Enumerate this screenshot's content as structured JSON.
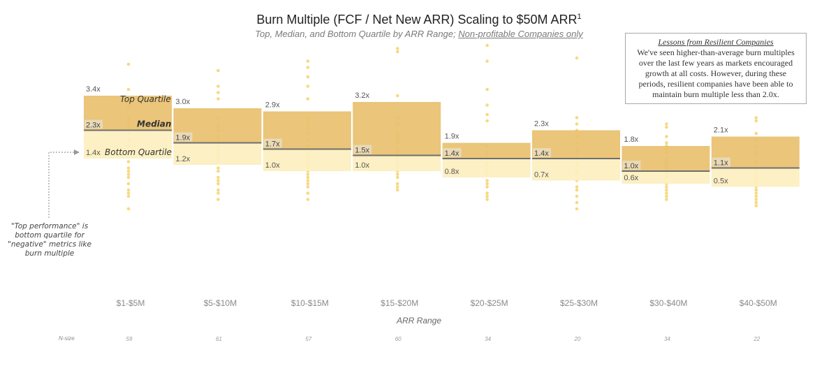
{
  "title": "Burn Multiple (FCF / Net New ARR) Scaling to $50M ARR",
  "title_sup": "1",
  "subtitle_main": "Top, Median, and Bottom Quartile by ARR Range;",
  "subtitle_underlined": "Non-profitable Companies only",
  "lessons": {
    "heading": "Lessons from Resilient Companies",
    "body": "We've seen higher-than-average burn multiples over the last few years as markets encouraged growth at all costs. However, during these periods, resilient companies have been able to maintain burn multiple less than 2.0x."
  },
  "callout": "\"Top performance\" is bottom quartile for \"negative\" metrics like burn multiple",
  "legend_labels": {
    "top": "Top Quartile",
    "median": "Median",
    "bottom": "Bottom Quartile"
  },
  "xaxis_title": "ARR Range",
  "nsize_label": "N-size",
  "colors": {
    "upper_box": "#e8c170",
    "lower_box": "#fcefc0",
    "median_line": "#6f6f6f",
    "dots": "#f7d77a"
  },
  "chart_data": {
    "type": "box",
    "categories": [
      "$1-$5M",
      "$5-$10M",
      "$10-$15M",
      "$15-$20M",
      "$20-$25M",
      "$25-$30M",
      "$30-$40M",
      "$40-$50M"
    ],
    "top_quartile": [
      3.4,
      3.0,
      2.9,
      3.2,
      1.9,
      2.3,
      1.8,
      2.1
    ],
    "median": [
      2.3,
      1.9,
      1.7,
      1.5,
      1.4,
      1.4,
      1.0,
      1.1
    ],
    "bottom_quartile": [
      1.4,
      1.2,
      1.0,
      1.0,
      0.8,
      0.7,
      0.6,
      0.5
    ],
    "top_labels": [
      "3.4x",
      "3.0x",
      "2.9x",
      "3.2x",
      "1.9x",
      "2.3x",
      "1.8x",
      "2.1x"
    ],
    "median_labels": [
      "2.3x",
      "1.9x",
      "1.7x",
      "1.5x",
      "1.4x",
      "1.4x",
      "1.0x",
      "1.1x"
    ],
    "bottom_labels": [
      "1.4x",
      "1.2x",
      "1.0x",
      "1.0x",
      "0.8x",
      "0.7x",
      "0.6x",
      "0.5x"
    ],
    "n_size": [
      59,
      61,
      57,
      60,
      34,
      20,
      34,
      22
    ],
    "points": [
      [
        4.4,
        3.6,
        3.1,
        3.0,
        2.7,
        2.6,
        2.5,
        2.4,
        2.2,
        2.0,
        1.8,
        1.6,
        1.5,
        1.3,
        1.1,
        1.0,
        0.9,
        0.8,
        0.6,
        0.4,
        0.3,
        0.2,
        -0.2
      ],
      [
        4.2,
        3.7,
        3.5,
        3.3,
        2.7,
        2.5,
        2.4,
        2.3,
        2.1,
        2.0,
        1.8,
        1.7,
        1.6,
        1.5,
        1.4,
        1.3,
        1.1,
        1.0,
        0.8,
        0.7,
        0.6,
        0.4,
        0.3,
        0.1
      ],
      [
        4.5,
        4.3,
        4.0,
        3.7,
        3.3,
        2.7,
        2.6,
        2.5,
        2.4,
        2.2,
        2.0,
        1.8,
        1.6,
        1.5,
        1.4,
        1.3,
        1.2,
        1.1,
        1.0,
        0.9,
        0.8,
        0.7,
        0.6,
        0.5,
        0.3,
        0.1
      ],
      [
        4.9,
        4.8,
        3.4,
        2.7,
        2.5,
        2.2,
        2.1,
        2.0,
        1.9,
        1.7,
        1.6,
        1.5,
        1.4,
        1.3,
        1.2,
        1.1,
        1.0,
        0.9,
        0.8,
        0.6,
        0.5,
        0.4
      ],
      [
        5.0,
        4.5,
        3.6,
        3.1,
        2.8,
        2.6,
        1.8,
        1.6,
        1.5,
        1.4,
        1.3,
        1.2,
        1.0,
        0.9,
        0.7,
        0.6,
        0.5,
        0.3,
        0.2,
        0.1
      ],
      [
        4.6,
        2.7,
        2.5,
        2.3,
        2.1,
        1.9,
        1.7,
        1.6,
        1.4,
        1.3,
        1.2,
        1.0,
        0.9,
        0.7,
        0.5,
        0.4,
        0.2,
        0.0,
        -0.2
      ],
      [
        2.5,
        2.4,
        2.1,
        1.9,
        1.8,
        1.7,
        1.6,
        1.4,
        1.3,
        1.2,
        1.1,
        1.0,
        0.9,
        0.8,
        0.6,
        0.5,
        0.4,
        0.3,
        0.2,
        0.1
      ],
      [
        2.7,
        2.6,
        2.2,
        2.0,
        1.8,
        1.6,
        1.5,
        1.3,
        1.2,
        1.1,
        1.0,
        0.9,
        0.8,
        0.7,
        0.6,
        0.5,
        0.4,
        0.3,
        0.2,
        0.1,
        0.0,
        -0.1
      ]
    ]
  }
}
